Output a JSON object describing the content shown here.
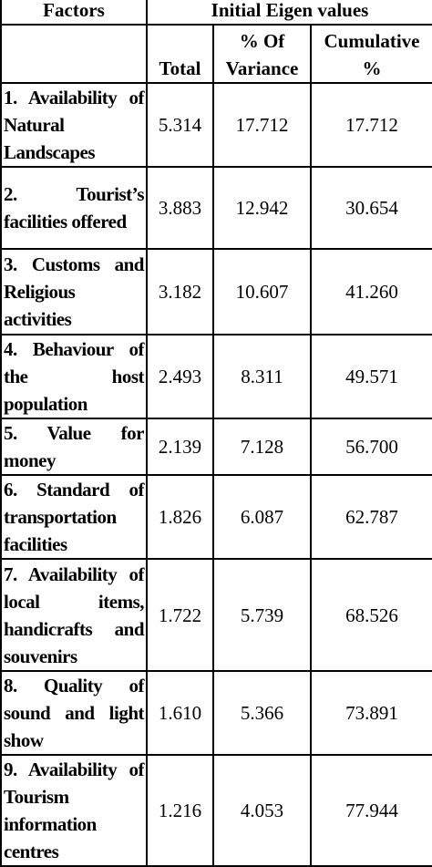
{
  "header": {
    "factors": "Factors",
    "group": "Initial Eigen values",
    "columns": [
      "Total",
      "% Of Variance",
      "Cumulative %"
    ]
  },
  "table": {
    "rows": [
      [
        "1. Availability of Natural Landscapes",
        "5.314",
        "17.712",
        "17.712"
      ],
      [
        "2. Tourist’s facilities offered",
        "3.883",
        "12.942",
        "30.654"
      ],
      [
        "3. Customs and Religious activities",
        "3.182",
        "10.607",
        "41.260"
      ],
      [
        "4. Behaviour of the host population",
        "2.493",
        "8.311",
        "49.571"
      ],
      [
        "5. Value for money",
        "2.139",
        "7.128",
        "56.700"
      ],
      [
        "6. Standard of transportation facilities",
        "1.826",
        "6.087",
        "62.787"
      ],
      [
        "7. Availability of local items, handicrafts and souvenirs",
        "1.722",
        "5.739",
        "68.526"
      ],
      [
        "8. Quality of sound and light show",
        "1.610",
        "5.366",
        "73.891"
      ],
      [
        "9. Availability of Tourism information centres",
        "1.216",
        "4.053",
        "77.944"
      ]
    ]
  }
}
